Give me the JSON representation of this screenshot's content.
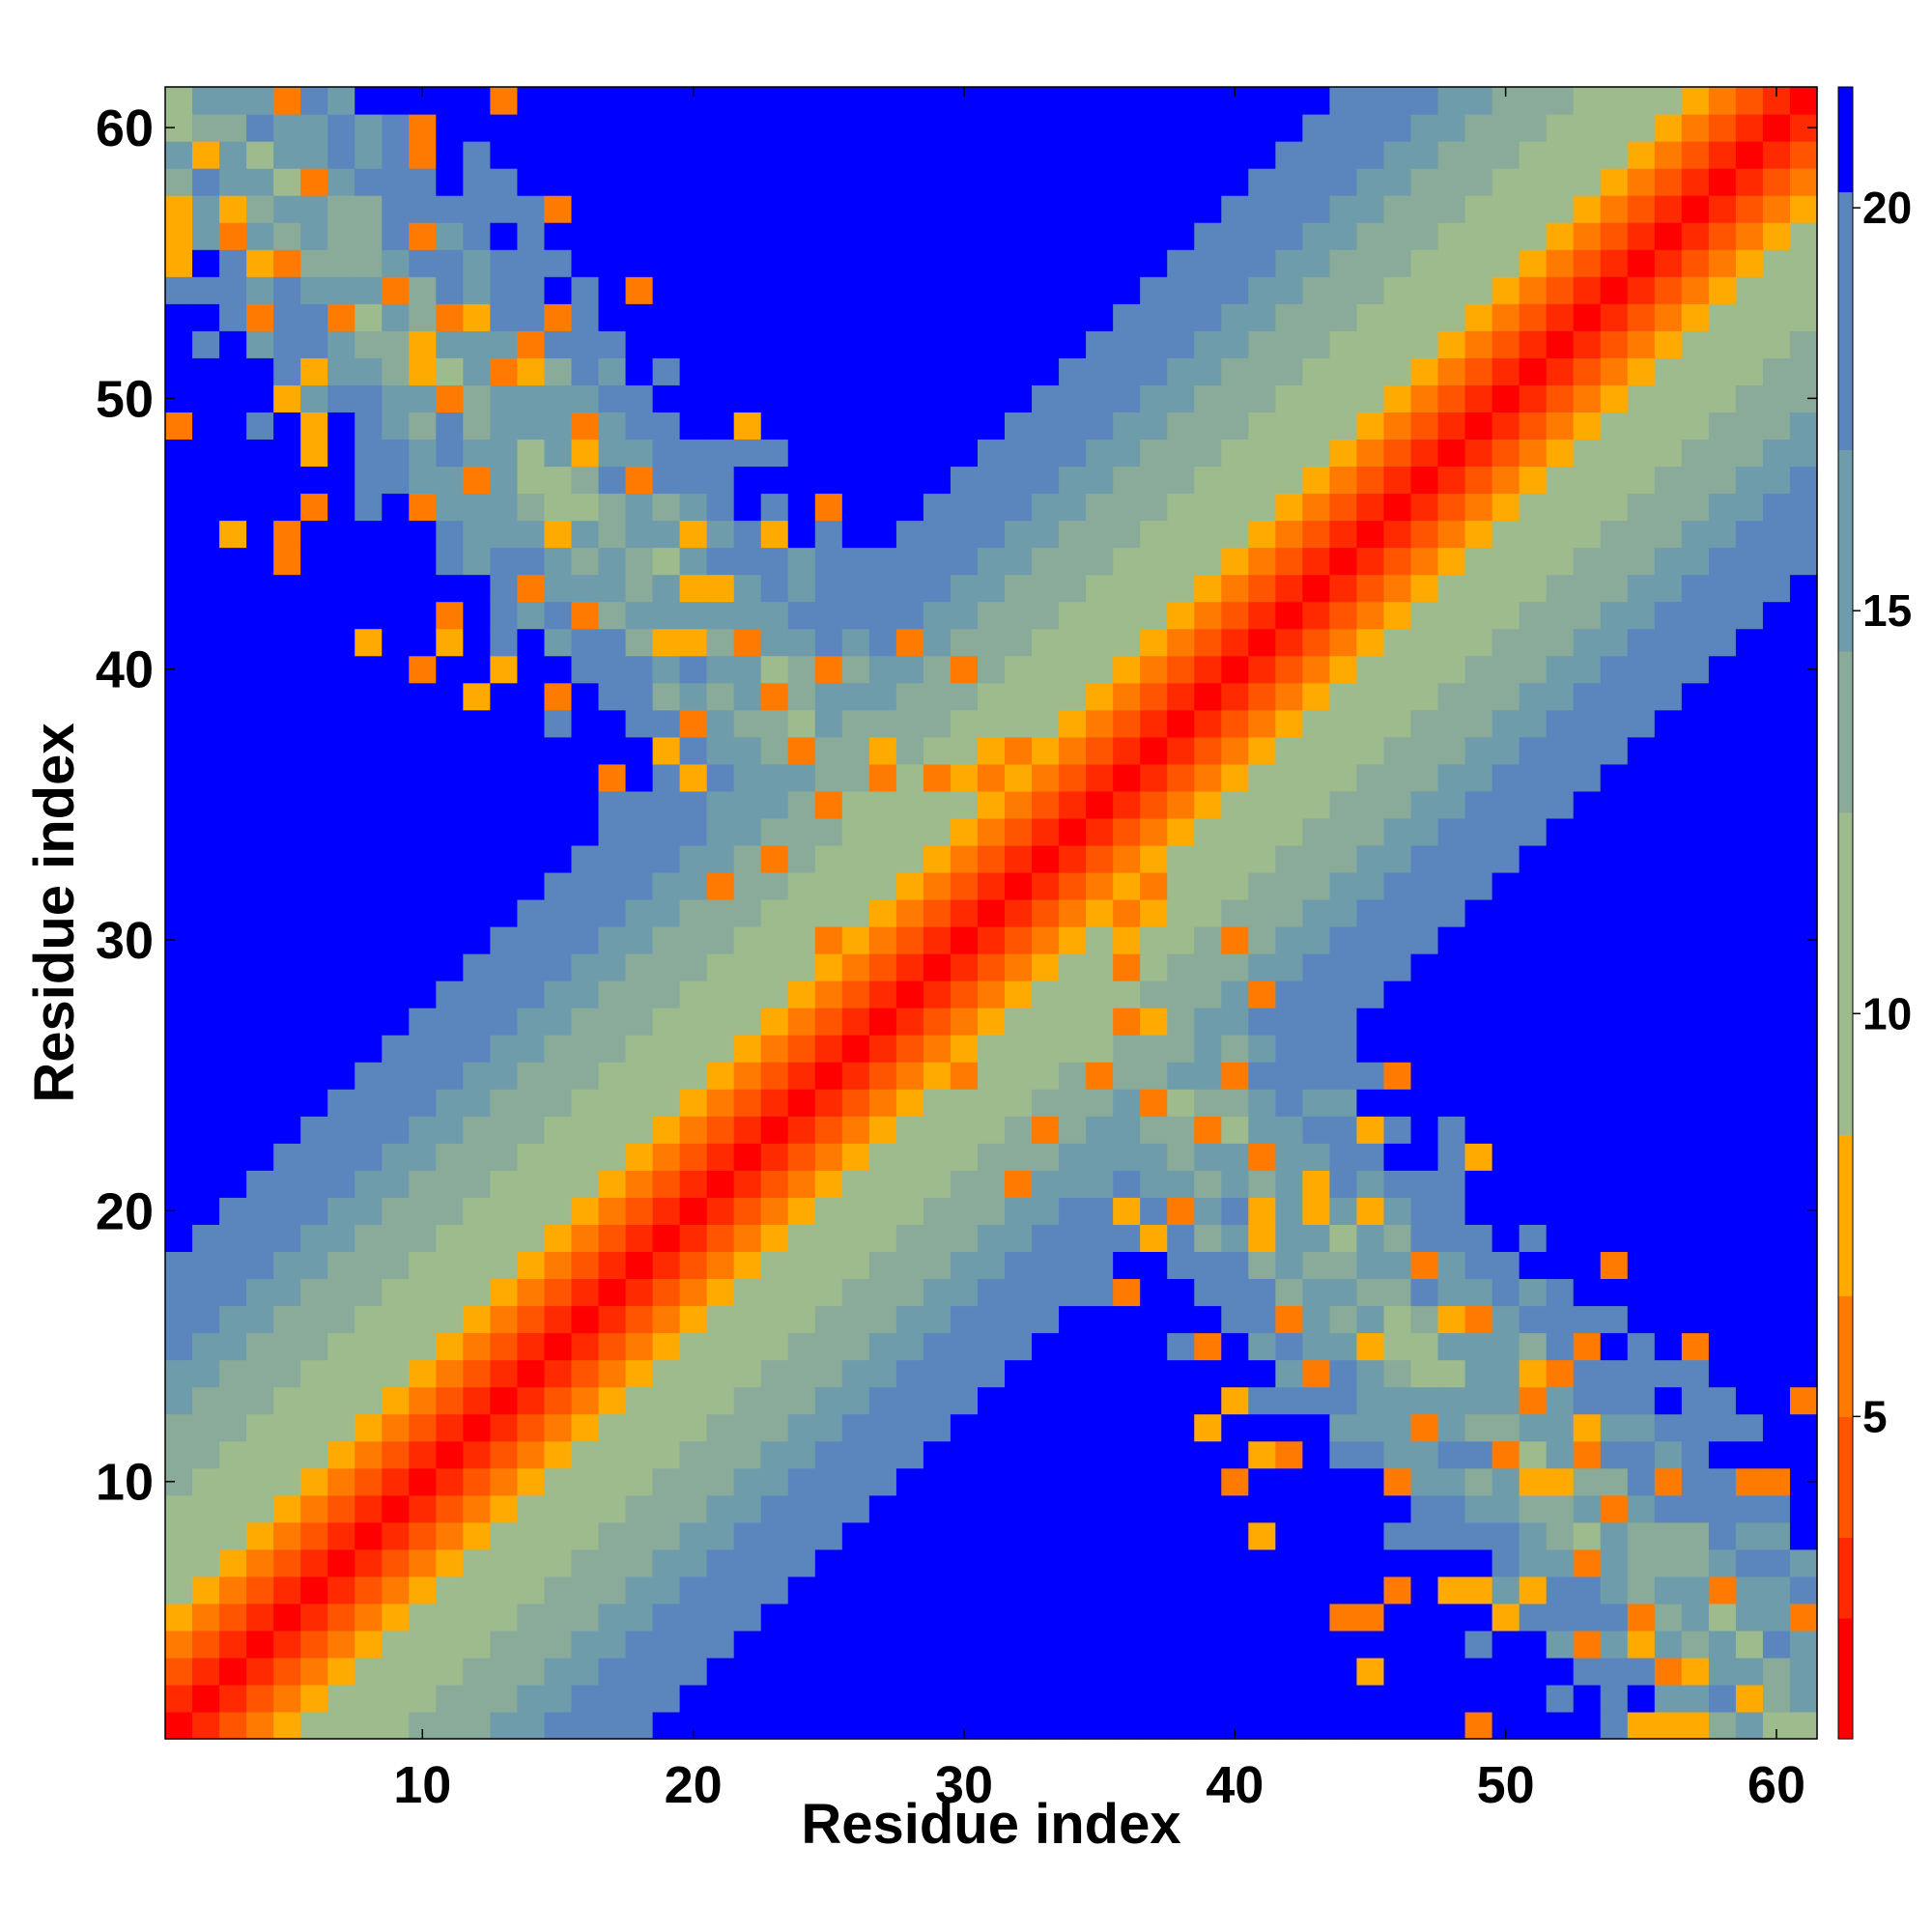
{
  "chart_data": {
    "type": "heatmap",
    "title": "",
    "xlabel": "Residue index",
    "ylabel": "Residue index",
    "n_residues": 61,
    "x_ticks": [
      10,
      20,
      30,
      40,
      50,
      60
    ],
    "y_ticks": [
      10,
      20,
      30,
      40,
      50,
      60
    ],
    "xlim": [
      1,
      61
    ],
    "ylim": [
      1,
      61
    ],
    "colorbar": {
      "ticks": [
        5,
        10,
        15,
        20
      ],
      "range": [
        1,
        21.5
      ],
      "colors": [
        "#ff0000",
        "#ff2a00",
        "#ff5500",
        "#ff7a00",
        "#ffaa00",
        "#9dbb8d",
        "#8aab9a",
        "#6e9cab",
        "#5b86bd",
        "#0000ff"
      ],
      "boundaries": [
        1,
        2.5,
        3.5,
        5,
        6.5,
        8.5,
        12.5,
        14.5,
        17,
        20.2,
        21.5
      ],
      "note_over": "distances above 20 drawn blue"
    },
    "description": "Symmetric residue-residue distance map: red main diagonal (distance < 3), orange/yellow near-diagonal, green-grey/steel-blue bands, blue for distances beyond 20. An anti-diagonal band of mid-range distances with scattered orange contacts crosses the center, forming an X pattern."
  }
}
